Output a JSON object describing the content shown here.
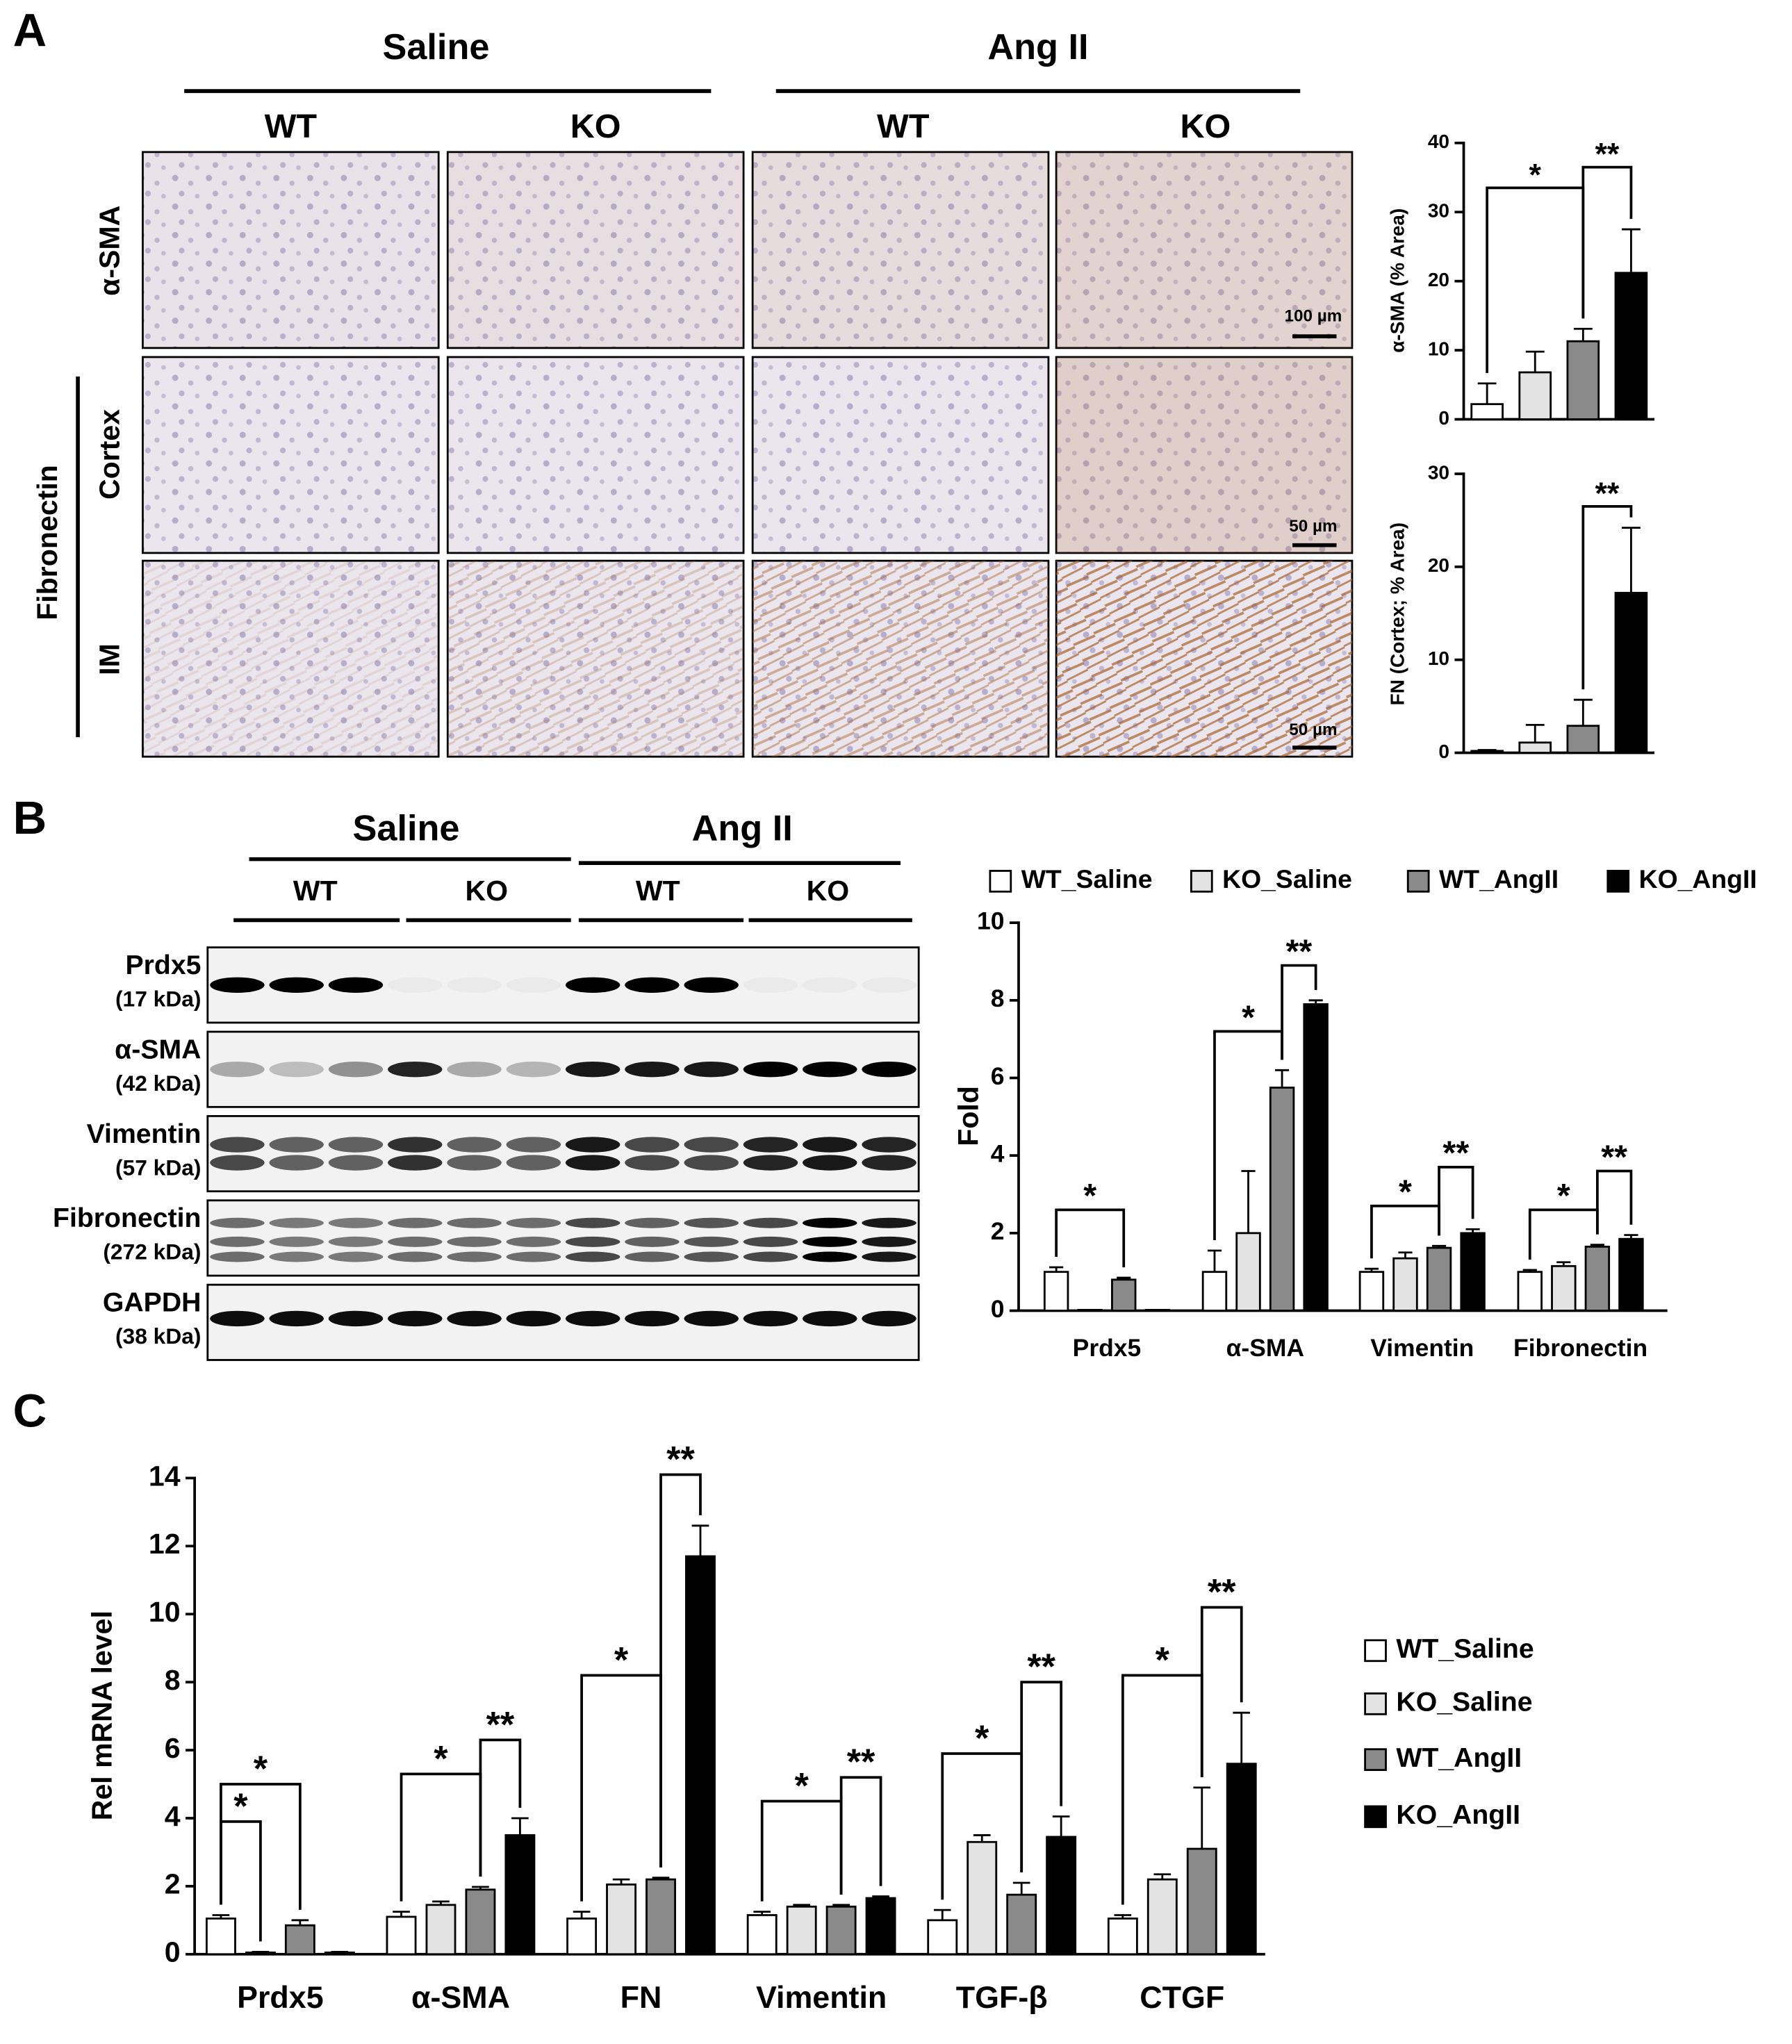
{
  "panel_a": {
    "label": "A",
    "groups": [
      "Saline",
      "Ang II"
    ],
    "genotypes": [
      "WT",
      "KO",
      "WT",
      "KO"
    ],
    "rows": [
      "α-SMA",
      "Cortex",
      "IM"
    ],
    "row_group": "Fibronectin",
    "scale_bars": [
      "100 µm",
      "50 µm",
      "50 µm"
    ]
  },
  "panel_b": {
    "label": "B",
    "groups": [
      "Saline",
      "Ang II"
    ],
    "genotypes": [
      "WT",
      "KO",
      "WT",
      "KO"
    ],
    "blots": [
      {
        "name": "Prdx5",
        "size": "(17 kDa)"
      },
      {
        "name": "α-SMA",
        "size": "(42 kDa)"
      },
      {
        "name": "Vimentin",
        "size": "(57 kDa)"
      },
      {
        "name": "Fibronectin",
        "size": "(272 kDa)"
      },
      {
        "name": "GAPDH",
        "size": "(38 kDa)"
      }
    ]
  },
  "panel_c": {
    "label": "C"
  },
  "chart_data": [
    {
      "type": "bar",
      "y_label": "α-SMA (% Area)",
      "values": [
        2.2,
        6.8,
        11.3,
        21.2
      ],
      "errors": [
        3.0,
        3.0,
        1.8,
        6.3
      ],
      "colors": [
        "#ffffff",
        "#e3e3e3",
        "#8a8a8a",
        "#000000"
      ],
      "ylim": [
        0,
        40
      ],
      "yticks": [
        0,
        10,
        20,
        30,
        40
      ],
      "annotations": [
        "*",
        "**"
      ]
    },
    {
      "type": "bar",
      "y_label": "FN (Cortex; % Area)",
      "values": [
        0.2,
        1.1,
        2.9,
        17.2
      ],
      "errors": [
        0.1,
        1.9,
        2.8,
        7.0
      ],
      "colors": [
        "#ffffff",
        "#e3e3e3",
        "#8a8a8a",
        "#000000"
      ],
      "ylim": [
        0,
        30
      ],
      "yticks": [
        0,
        10,
        20,
        30
      ],
      "annotations": [
        "**"
      ]
    },
    {
      "type": "bar",
      "y_label": "Fold",
      "categories": [
        "Prdx5",
        "α-SMA",
        "Vimentin",
        "Fibronectin"
      ],
      "legend": "top",
      "series": [
        {
          "name": "WT_Saline",
          "color": "#ffffff",
          "values": [
            1.0,
            1.0,
            1.0,
            1.0
          ],
          "errors": [
            0.12,
            0.55,
            0.08,
            0.05
          ]
        },
        {
          "name": "KO_Saline",
          "color": "#e3e3e3",
          "values": [
            0.02,
            2.0,
            1.35,
            1.15
          ],
          "errors": [
            0.0,
            1.6,
            0.15,
            0.1
          ]
        },
        {
          "name": "WT_AngII",
          "color": "#8a8a8a",
          "values": [
            0.8,
            5.75,
            1.62,
            1.65
          ],
          "errors": [
            0.05,
            0.45,
            0.05,
            0.05
          ]
        },
        {
          "name": "KO_AngII",
          "color": "#000000",
          "values": [
            0.02,
            7.9,
            2.0,
            1.85
          ],
          "errors": [
            0.0,
            0.1,
            0.1,
            0.1
          ]
        }
      ],
      "ylim": [
        0,
        10
      ],
      "yticks": [
        0,
        2,
        4,
        6,
        8,
        10
      ],
      "annotations": [
        "*",
        "*",
        "**",
        "*",
        "**",
        "*",
        "**"
      ]
    },
    {
      "type": "bar",
      "y_label": "Rel mRNA level",
      "categories": [
        "Prdx5",
        "α-SMA",
        "FN",
        "Vimentin",
        "TGF-β",
        "CTGF"
      ],
      "legend": "right",
      "series": [
        {
          "name": "WT_Saline",
          "color": "#ffffff",
          "values": [
            1.05,
            1.1,
            1.05,
            1.15,
            1.0,
            1.05
          ],
          "errors": [
            0.1,
            0.15,
            0.2,
            0.1,
            0.3,
            0.1
          ]
        },
        {
          "name": "KO_Saline",
          "color": "#e3e3e3",
          "values": [
            0.05,
            1.45,
            2.05,
            1.4,
            3.3,
            2.2
          ],
          "errors": [
            0.02,
            0.1,
            0.15,
            0.05,
            0.2,
            0.15
          ]
        },
        {
          "name": "WT_AngII",
          "color": "#8a8a8a",
          "values": [
            0.85,
            1.9,
            2.2,
            1.4,
            1.75,
            3.1
          ],
          "errors": [
            0.15,
            0.08,
            0.05,
            0.05,
            0.35,
            1.8
          ]
        },
        {
          "name": "KO_AngII",
          "color": "#000000",
          "values": [
            0.05,
            3.5,
            11.7,
            1.65,
            3.45,
            5.6
          ],
          "errors": [
            0.02,
            0.5,
            0.9,
            0.05,
            0.6,
            1.5
          ]
        }
      ],
      "ylim": [
        0,
        14
      ],
      "yticks": [
        0,
        2,
        4,
        6,
        8,
        10,
        12,
        14
      ],
      "annotations": [
        "*",
        "*",
        "*",
        "**",
        "*",
        "**",
        "*",
        "**",
        "*",
        "**",
        "*",
        "**"
      ]
    }
  ]
}
